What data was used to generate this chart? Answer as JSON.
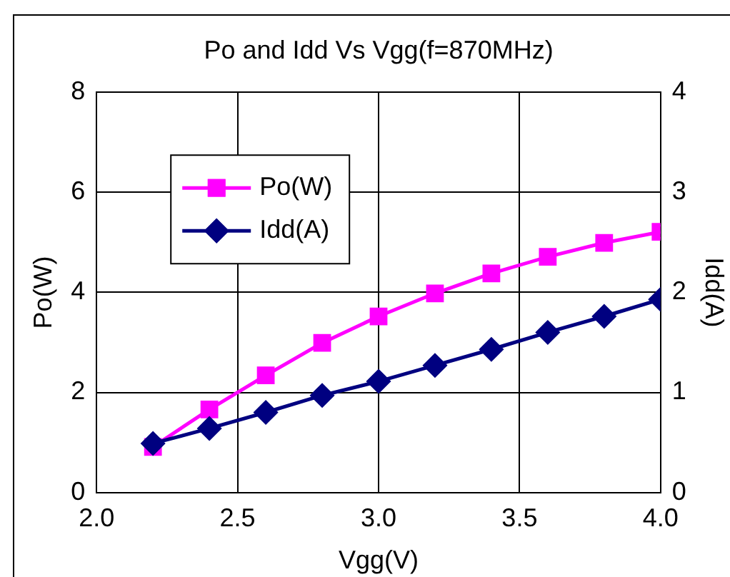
{
  "chart_data": {
    "type": "line",
    "title": "Po and Idd Vs Vgg(f=870MHz)",
    "xlabel": "Vgg(V)",
    "ylabel": "Po(W)",
    "y2label": "Idd(A)",
    "x": [
      2.2,
      2.4,
      2.6,
      2.8,
      3.0,
      3.2,
      3.4,
      3.6,
      3.8,
      4.0
    ],
    "series": [
      {
        "name": "Po(W)",
        "color": "#ff00ff",
        "marker": "square",
        "values": [
          0.91,
          1.66,
          2.34,
          2.99,
          3.52,
          3.98,
          4.38,
          4.71,
          4.99,
          5.21
        ]
      },
      {
        "name": "Idd(A)",
        "color": "#000080",
        "marker": "diamond",
        "axis": "y2",
        "values": [
          0.49,
          0.64,
          0.8,
          0.97,
          1.11,
          1.27,
          1.43,
          1.6,
          1.76,
          1.93
        ]
      }
    ],
    "xlim": [
      2.0,
      4.0
    ],
    "xticks": [
      {
        "value": 2.0,
        "label": "2.0"
      },
      {
        "value": 2.5,
        "label": "2.5"
      },
      {
        "value": 3.0,
        "label": "3.0"
      },
      {
        "value": 3.5,
        "label": "3.5"
      },
      {
        "value": 4.0,
        "label": "4.0"
      }
    ],
    "ylim": [
      0,
      8
    ],
    "yticks": [
      0,
      2,
      4,
      6,
      8
    ],
    "y2lim": [
      0,
      4
    ],
    "y2ticks": [
      0,
      1,
      2,
      3,
      4
    ],
    "grid": true,
    "legend": "top left"
  }
}
